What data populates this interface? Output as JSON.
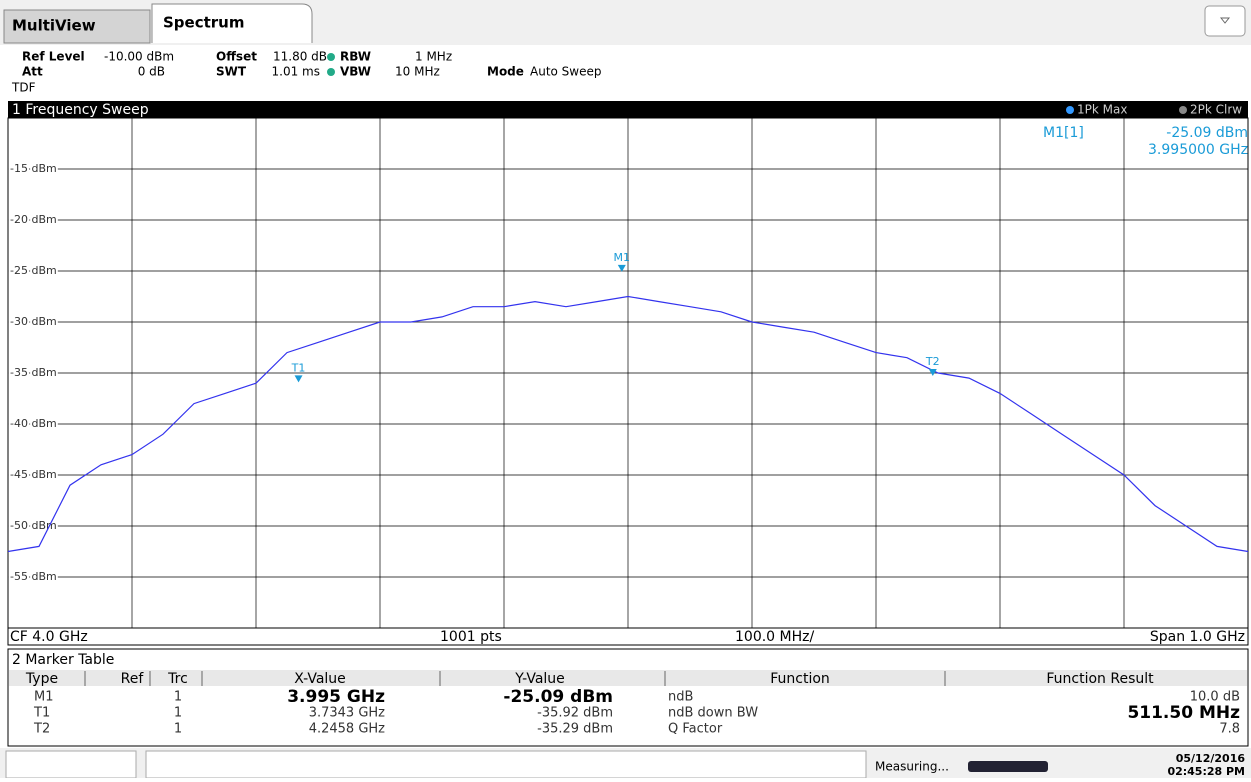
{
  "tabs": [
    "MultiView",
    "Spectrum"
  ],
  "settings": {
    "ref_level": {
      "label": "Ref Level",
      "value": "-10.00 dBm"
    },
    "offset": {
      "label": "Offset",
      "value": "11.80 dB"
    },
    "rbw": {
      "label": "RBW",
      "value": "1 MHz"
    },
    "att": {
      "label": "Att",
      "value": "0 dB"
    },
    "swt": {
      "label": "SWT",
      "value": "1.01 ms"
    },
    "vbw": {
      "label": "VBW",
      "value": "10 MHz"
    },
    "mode": {
      "label": "Mode",
      "value": "Auto Sweep"
    },
    "tdf": "TDF"
  },
  "chart_data": {
    "type": "line",
    "title": "1 Frequency Sweep",
    "legend": [
      "1Pk Max",
      "2Pk Clrw"
    ],
    "marker_readout": [
      "M1[1]",
      "-25.09 dBm",
      "3.995000 GHz"
    ],
    "footer": [
      "CF 4.0 GHz",
      "1001 pts",
      "100.0 MHz/",
      "Span 1.0 GHz"
    ],
    "x": [
      3.5,
      3.525,
      3.55,
      3.575,
      3.6,
      3.625,
      3.65,
      3.675,
      3.7,
      3.725,
      3.75,
      3.775,
      3.8,
      3.825,
      3.85,
      3.875,
      3.9,
      3.925,
      3.95,
      3.975,
      4.0,
      4.025,
      4.05,
      4.075,
      4.1,
      4.125,
      4.15,
      4.175,
      4.2,
      4.225,
      4.25,
      4.275,
      4.3,
      4.325,
      4.35,
      4.375,
      4.4,
      4.425,
      4.45,
      4.475,
      4.5
    ],
    "series": [
      {
        "name": "1Pk Max",
        "color": "#3333ee",
        "values": [
          -52.5,
          -52,
          -46,
          -44,
          -43,
          -41,
          -38,
          -37,
          -36,
          -33,
          -32,
          -31,
          -30,
          -30,
          -29.5,
          -28.5,
          -28.5,
          -28,
          -28.5,
          -28,
          -27.5,
          -28,
          -28.5,
          -29,
          -30,
          -30.5,
          -31,
          -32,
          -33,
          -33.5,
          -35,
          -35.5,
          -37,
          -39,
          -41,
          -43,
          -45,
          -48,
          -50,
          -52,
          -52.5
        ]
      }
    ],
    "xlim": [
      3.5,
      4.5
    ],
    "xticks": [
      3.5,
      3.6,
      3.7,
      3.8,
      3.9,
      4.0,
      4.1,
      4.2,
      4.3,
      4.4,
      4.5
    ],
    "ylim": [
      -60,
      -10
    ],
    "yticks": [
      {
        "value": -15,
        "label": "-15 dBm"
      },
      {
        "value": -20,
        "label": "-20 dBm"
      },
      {
        "value": -25,
        "label": "-25 dBm"
      },
      {
        "value": -30,
        "label": "-30 dBm"
      },
      {
        "value": -35,
        "label": "-35 dBm"
      },
      {
        "value": -40,
        "label": "-40 dBm"
      },
      {
        "value": -45,
        "label": "-45 dBm"
      },
      {
        "value": -50,
        "label": "-50 dBm"
      },
      {
        "value": -55,
        "label": "-55 dBm"
      }
    ],
    "grid": true,
    "marker_color": "#1a9bd7",
    "markers": [
      {
        "label": "M1",
        "x": 3.995,
        "y": -25.09
      },
      {
        "label": "T1",
        "x": 3.7343,
        "y": -35.92
      },
      {
        "label": "T2",
        "x": 4.2458,
        "y": -35.29
      }
    ]
  },
  "marker_table": {
    "title": "2 Marker Table",
    "headers": [
      "Type",
      "Ref",
      "Trc",
      "X-Value",
      "Y-Value",
      "Function",
      "Function Result"
    ],
    "rows": [
      [
        "M1",
        "",
        "1",
        "3.995 GHz",
        "-25.09 dBm",
        "ndB",
        "10.0 dB"
      ],
      [
        "T1",
        "",
        "1",
        "3.7343 GHz",
        "-35.92 dBm",
        "ndB down BW",
        "511.50 MHz"
      ],
      [
        "T2",
        "",
        "1",
        "4.2458 GHz",
        "-35.29 dBm",
        "Q Factor",
        "7.8"
      ]
    ]
  },
  "status": {
    "message": "Measuring...",
    "date": "05/12/2016",
    "time": "02:45:28 PM"
  }
}
